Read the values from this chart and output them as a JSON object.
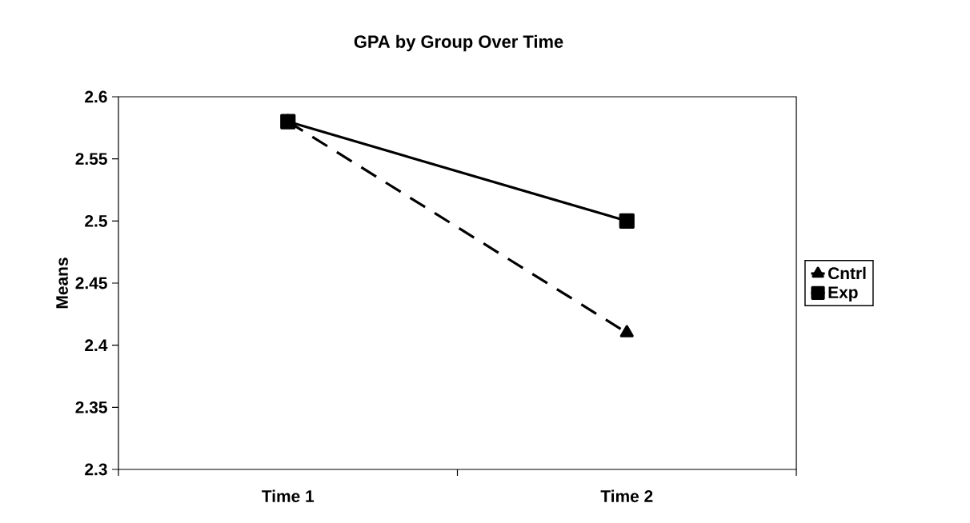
{
  "chart_data": {
    "type": "line",
    "title": "GPA by Group Over Time",
    "ylabel": "Means",
    "categories": [
      "Time 1",
      "Time 2"
    ],
    "series": [
      {
        "name": "Cntrl",
        "color": "#000000",
        "values": [
          2.58,
          2.41
        ],
        "marker": "triangle",
        "line_style": "dashed"
      },
      {
        "name": "Exp",
        "color": "#000000",
        "values": [
          2.58,
          2.5
        ],
        "marker": "square",
        "line_style": "solid"
      }
    ],
    "ylim": [
      2.3,
      2.6
    ],
    "yticks": [
      2.3,
      2.35,
      2.4,
      2.45,
      2.5,
      2.55,
      2.6
    ],
    "legend": "right"
  }
}
